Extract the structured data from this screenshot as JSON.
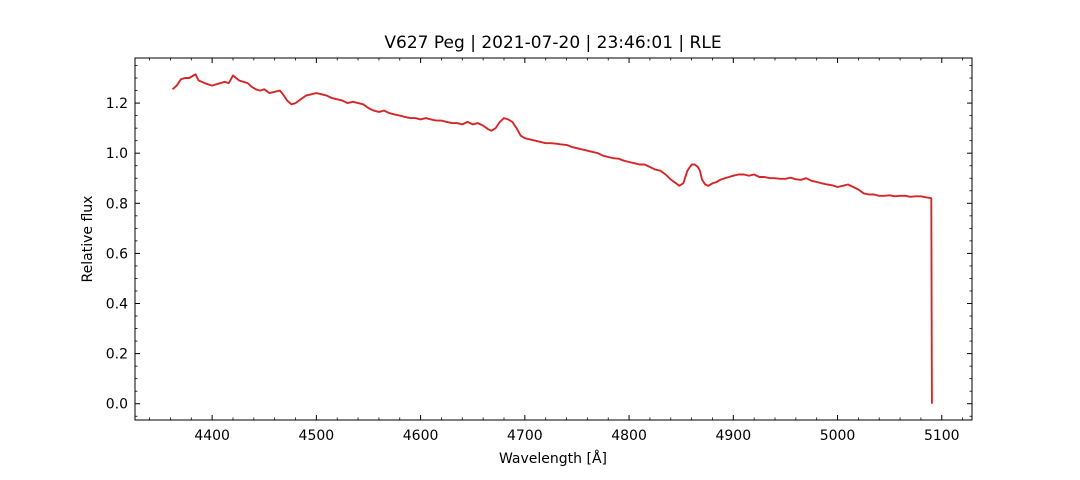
{
  "chart_data": {
    "type": "line",
    "title": "V627 Peg | 2021-07-20 | 23:46:01 | RLE",
    "xlabel": "Wavelength [Å]",
    "ylabel": "Relative flux",
    "xlim": [
      4326,
      5129
    ],
    "ylim": [
      -0.065,
      1.38
    ],
    "xticks": [
      4400,
      4500,
      4600,
      4700,
      4800,
      4900,
      5000,
      5100
    ],
    "yticks": [
      0.0,
      0.2,
      0.4,
      0.6,
      0.8,
      1.0,
      1.2
    ],
    "grid": false,
    "legend": "none",
    "colors": {
      "line": "#d62728",
      "axes": "#000000"
    },
    "series": [
      {
        "x": [
          4362,
          4366,
          4370,
          4374,
          4378,
          4382,
          4384,
          4387,
          4390,
          4393,
          4396,
          4400,
          4404,
          4408,
          4412,
          4416,
          4420,
          4423,
          4426,
          4430,
          4434,
          4438,
          4442,
          4446,
          4450,
          4455,
          4460,
          4465,
          4468,
          4472,
          4476,
          4480,
          4485,
          4490,
          4495,
          4500,
          4505,
          4510,
          4515,
          4520,
          4525,
          4530,
          4535,
          4540,
          4545,
          4550,
          4555,
          4560,
          4565,
          4570,
          4575,
          4580,
          4585,
          4590,
          4595,
          4600,
          4605,
          4610,
          4615,
          4620,
          4625,
          4630,
          4635,
          4640,
          4645,
          4650,
          4655,
          4660,
          4665,
          4668,
          4672,
          4676,
          4680,
          4684,
          4688,
          4692,
          4696,
          4700,
          4705,
          4710,
          4715,
          4720,
          4725,
          4730,
          4735,
          4740,
          4745,
          4750,
          4755,
          4760,
          4765,
          4770,
          4775,
          4780,
          4785,
          4790,
          4795,
          4800,
          4805,
          4810,
          4815,
          4820,
          4825,
          4830,
          4835,
          4840,
          4845,
          4848,
          4852,
          4856,
          4860,
          4863,
          4866,
          4868,
          4870,
          4873,
          4876,
          4880,
          4884,
          4888,
          4892,
          4896,
          4900,
          4905,
          4910,
          4915,
          4920,
          4925,
          4930,
          4935,
          4940,
          4945,
          4950,
          4955,
          4960,
          4965,
          4970,
          4975,
          4980,
          4985,
          4990,
          4995,
          5000,
          5005,
          5010,
          5015,
          5020,
          5025,
          5030,
          5035,
          5040,
          5045,
          5050,
          5055,
          5060,
          5065,
          5070,
          5075,
          5080,
          5085,
          5088,
          5090,
          5090.5
        ],
        "y": [
          1.255,
          1.27,
          1.295,
          1.3,
          1.3,
          1.31,
          1.315,
          1.29,
          1.285,
          1.28,
          1.275,
          1.27,
          1.275,
          1.28,
          1.285,
          1.28,
          1.31,
          1.3,
          1.29,
          1.285,
          1.28,
          1.265,
          1.255,
          1.25,
          1.255,
          1.24,
          1.245,
          1.25,
          1.235,
          1.21,
          1.195,
          1.2,
          1.215,
          1.23,
          1.235,
          1.24,
          1.235,
          1.23,
          1.22,
          1.215,
          1.21,
          1.2,
          1.205,
          1.2,
          1.195,
          1.18,
          1.17,
          1.165,
          1.17,
          1.16,
          1.155,
          1.15,
          1.145,
          1.14,
          1.14,
          1.135,
          1.14,
          1.135,
          1.13,
          1.13,
          1.125,
          1.12,
          1.12,
          1.115,
          1.125,
          1.115,
          1.12,
          1.11,
          1.095,
          1.09,
          1.1,
          1.125,
          1.14,
          1.135,
          1.125,
          1.1,
          1.07,
          1.06,
          1.055,
          1.05,
          1.045,
          1.04,
          1.04,
          1.038,
          1.035,
          1.033,
          1.025,
          1.02,
          1.015,
          1.01,
          1.005,
          1.0,
          0.99,
          0.985,
          0.98,
          0.978,
          0.97,
          0.965,
          0.96,
          0.955,
          0.955,
          0.945,
          0.935,
          0.93,
          0.915,
          0.895,
          0.88,
          0.87,
          0.88,
          0.93,
          0.955,
          0.955,
          0.945,
          0.93,
          0.895,
          0.875,
          0.87,
          0.88,
          0.885,
          0.895,
          0.9,
          0.905,
          0.91,
          0.915,
          0.915,
          0.91,
          0.915,
          0.905,
          0.905,
          0.9,
          0.9,
          0.898,
          0.898,
          0.902,
          0.896,
          0.894,
          0.9,
          0.89,
          0.885,
          0.88,
          0.875,
          0.872,
          0.865,
          0.87,
          0.875,
          0.865,
          0.855,
          0.84,
          0.835,
          0.835,
          0.83,
          0.83,
          0.832,
          0.828,
          0.83,
          0.83,
          0.826,
          0.828,
          0.828,
          0.824,
          0.822,
          0.82,
          0.0
        ]
      }
    ]
  }
}
